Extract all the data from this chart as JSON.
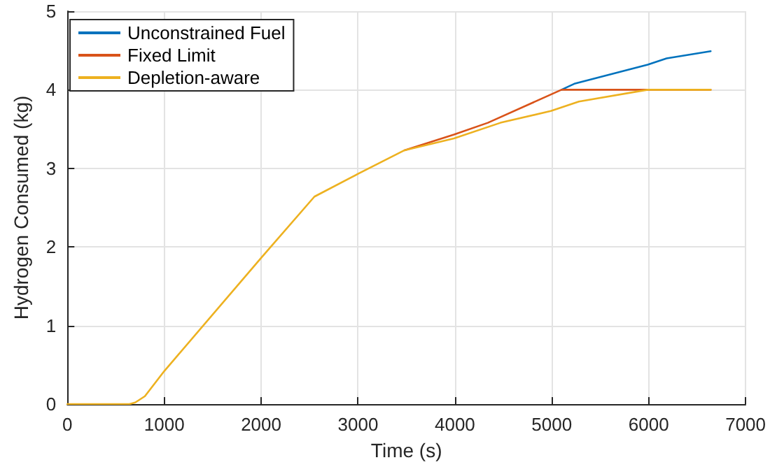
{
  "chart_data": {
    "type": "line",
    "xlabel": "Time (s)",
    "ylabel": "Hydrogen Consumed (kg)",
    "xlim": [
      0,
      7000
    ],
    "xticks": [
      0,
      1000,
      2000,
      3000,
      4000,
      5000,
      6000,
      7000
    ],
    "ylim": [
      0,
      5
    ],
    "yticks": [
      0,
      1,
      2,
      3,
      4,
      5
    ],
    "grid": true,
    "legend": "top left",
    "marker": "none",
    "line_style": "solid",
    "series": [
      {
        "name": "Unconstrained Fuel",
        "color": "#0072bd",
        "x": [
          5100,
          5240,
          5990,
          6185,
          6640
        ],
        "values": [
          4.0,
          4.08,
          4.32,
          4.4,
          4.49
        ]
      },
      {
        "name": "Fixed Limit",
        "color": "#d95319",
        "x": [
          3480,
          3990,
          4340,
          5100,
          6640
        ],
        "values": [
          3.23,
          3.43,
          3.58,
          4.0,
          4.0
        ]
      },
      {
        "name": "Depletion-aware",
        "color": "#edb120",
        "x": [
          0,
          640,
          700,
          800,
          1000,
          2000,
          2550,
          3000,
          3480,
          3990,
          4470,
          4990,
          5280,
          5990,
          6640
        ],
        "values": [
          0,
          0,
          0.02,
          0.1,
          0.42,
          1.86,
          2.64,
          2.93,
          3.23,
          3.38,
          3.58,
          3.73,
          3.85,
          4.0,
          4.0
        ]
      }
    ]
  }
}
